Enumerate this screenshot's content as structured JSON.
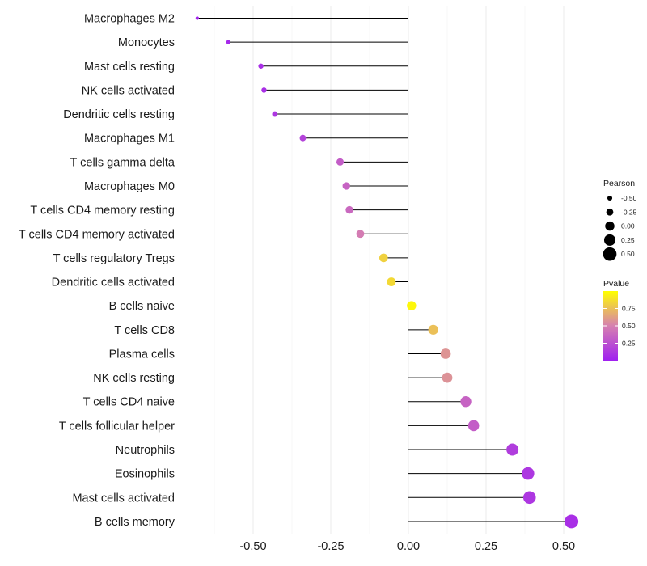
{
  "chart_data": {
    "type": "lollipop",
    "title": "",
    "xlabel": "",
    "ylabel": "",
    "xlim": [
      -0.75,
      0.57
    ],
    "grid": true,
    "categories": [
      "Macrophages M2",
      "Monocytes",
      "Mast cells resting",
      "NK cells activated",
      "Dendritic cells resting",
      "Macrophages M1",
      "T cells gamma delta",
      "Macrophages M0",
      "T cells CD4 memory resting",
      "T cells CD4 memory activated",
      "T cells regulatory  Tregs ",
      "Dendritic cells activated",
      "B cells naive",
      "T cells CD8",
      "Plasma cells",
      "NK cells resting",
      "T cells CD4 naive",
      "T cells follicular helper",
      "Neutrophils",
      "Eosinophils",
      "Mast cells activated",
      "B cells memory"
    ],
    "values": [
      -0.68,
      -0.58,
      -0.475,
      -0.465,
      -0.43,
      -0.34,
      -0.22,
      -0.2,
      -0.19,
      -0.155,
      -0.08,
      -0.055,
      0.01,
      0.08,
      0.12,
      0.125,
      0.185,
      0.21,
      0.335,
      0.385,
      0.39,
      0.525
    ],
    "pvalues": [
      0.02,
      0.05,
      0.08,
      0.08,
      0.12,
      0.18,
      0.32,
      0.35,
      0.38,
      0.48,
      0.82,
      0.85,
      0.97,
      0.75,
      0.58,
      0.57,
      0.35,
      0.32,
      0.15,
      0.12,
      0.12,
      0.08
    ],
    "x_ticks": [
      -0.5,
      -0.25,
      0.0,
      0.25,
      0.5
    ],
    "x_tick_labels": [
      "-0.50",
      "-0.25",
      "0.00",
      "0.25",
      "0.50"
    ],
    "legend_size": {
      "title": "Pearson",
      "values": [
        -0.5,
        -0.25,
        0.0,
        0.25,
        0.5
      ],
      "labels": [
        "-0.50",
        "-0.25",
        "0.00",
        "0.25",
        "0.50"
      ]
    },
    "legend_color": {
      "title": "Pvalue",
      "range": [
        0.0,
        1.0
      ],
      "ticks": [
        0.25,
        0.5,
        0.75
      ],
      "tick_labels": [
        "0.25",
        "0.50",
        "0.75"
      ],
      "low_color": "#a020f0",
      "mid_color": "#d680b0",
      "high_color": "#ffff00"
    },
    "legend_position": "right"
  }
}
